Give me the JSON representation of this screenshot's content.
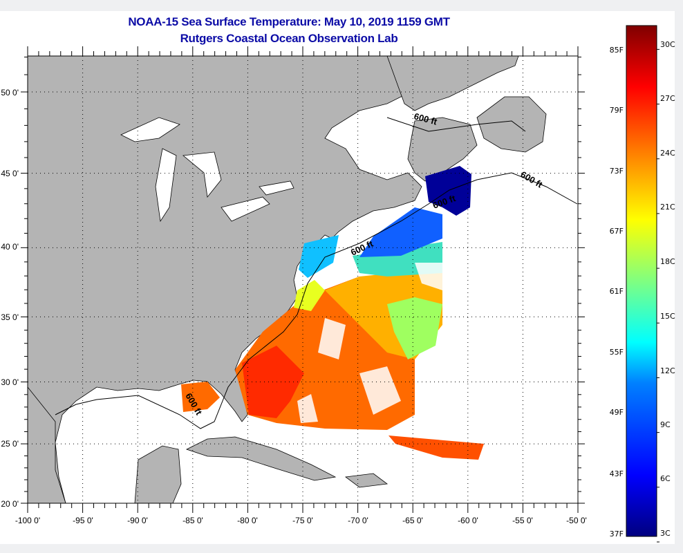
{
  "header": {
    "title": "NOAA-15 Sea Surface Temperature:  May 10, 2019 1159 GMT",
    "subtitle": "Rutgers Coastal Ocean Observation Lab"
  },
  "map": {
    "lon_labels": [
      "-100 0'",
      "-95 0'",
      "-90 0'",
      "-85 0'",
      "-80 0'",
      "-75 0'",
      "-70 0'",
      "-65 0'",
      "-60 0'",
      "-55 0'",
      "-50 0'"
    ],
    "lat_labels": [
      "50 0'",
      "45 0'",
      "40 0'",
      "35 0'",
      "30 0'",
      "25 0'",
      "20 0'"
    ],
    "lon_range": [
      -100,
      -50
    ],
    "lat_range": [
      20,
      52.5
    ],
    "projection": "mercator",
    "grid": "dotted",
    "contour_labels": [
      "600 ft",
      "600 ft",
      "600 ft",
      "600 ft",
      "600 ft"
    ],
    "land_color": "#b4b4b4"
  },
  "colorbar": {
    "fahrenheit_labels": [
      "85F",
      "79F",
      "73F",
      "67F",
      "61F",
      "55F",
      "49F",
      "43F",
      "37F"
    ],
    "celsius_labels": [
      "30C",
      "27C",
      "24C",
      "21C",
      "18C",
      "15C",
      "12C",
      "9C",
      "6C",
      "3C"
    ],
    "colormap": "jet",
    "range_c": [
      3,
      31
    ]
  }
}
